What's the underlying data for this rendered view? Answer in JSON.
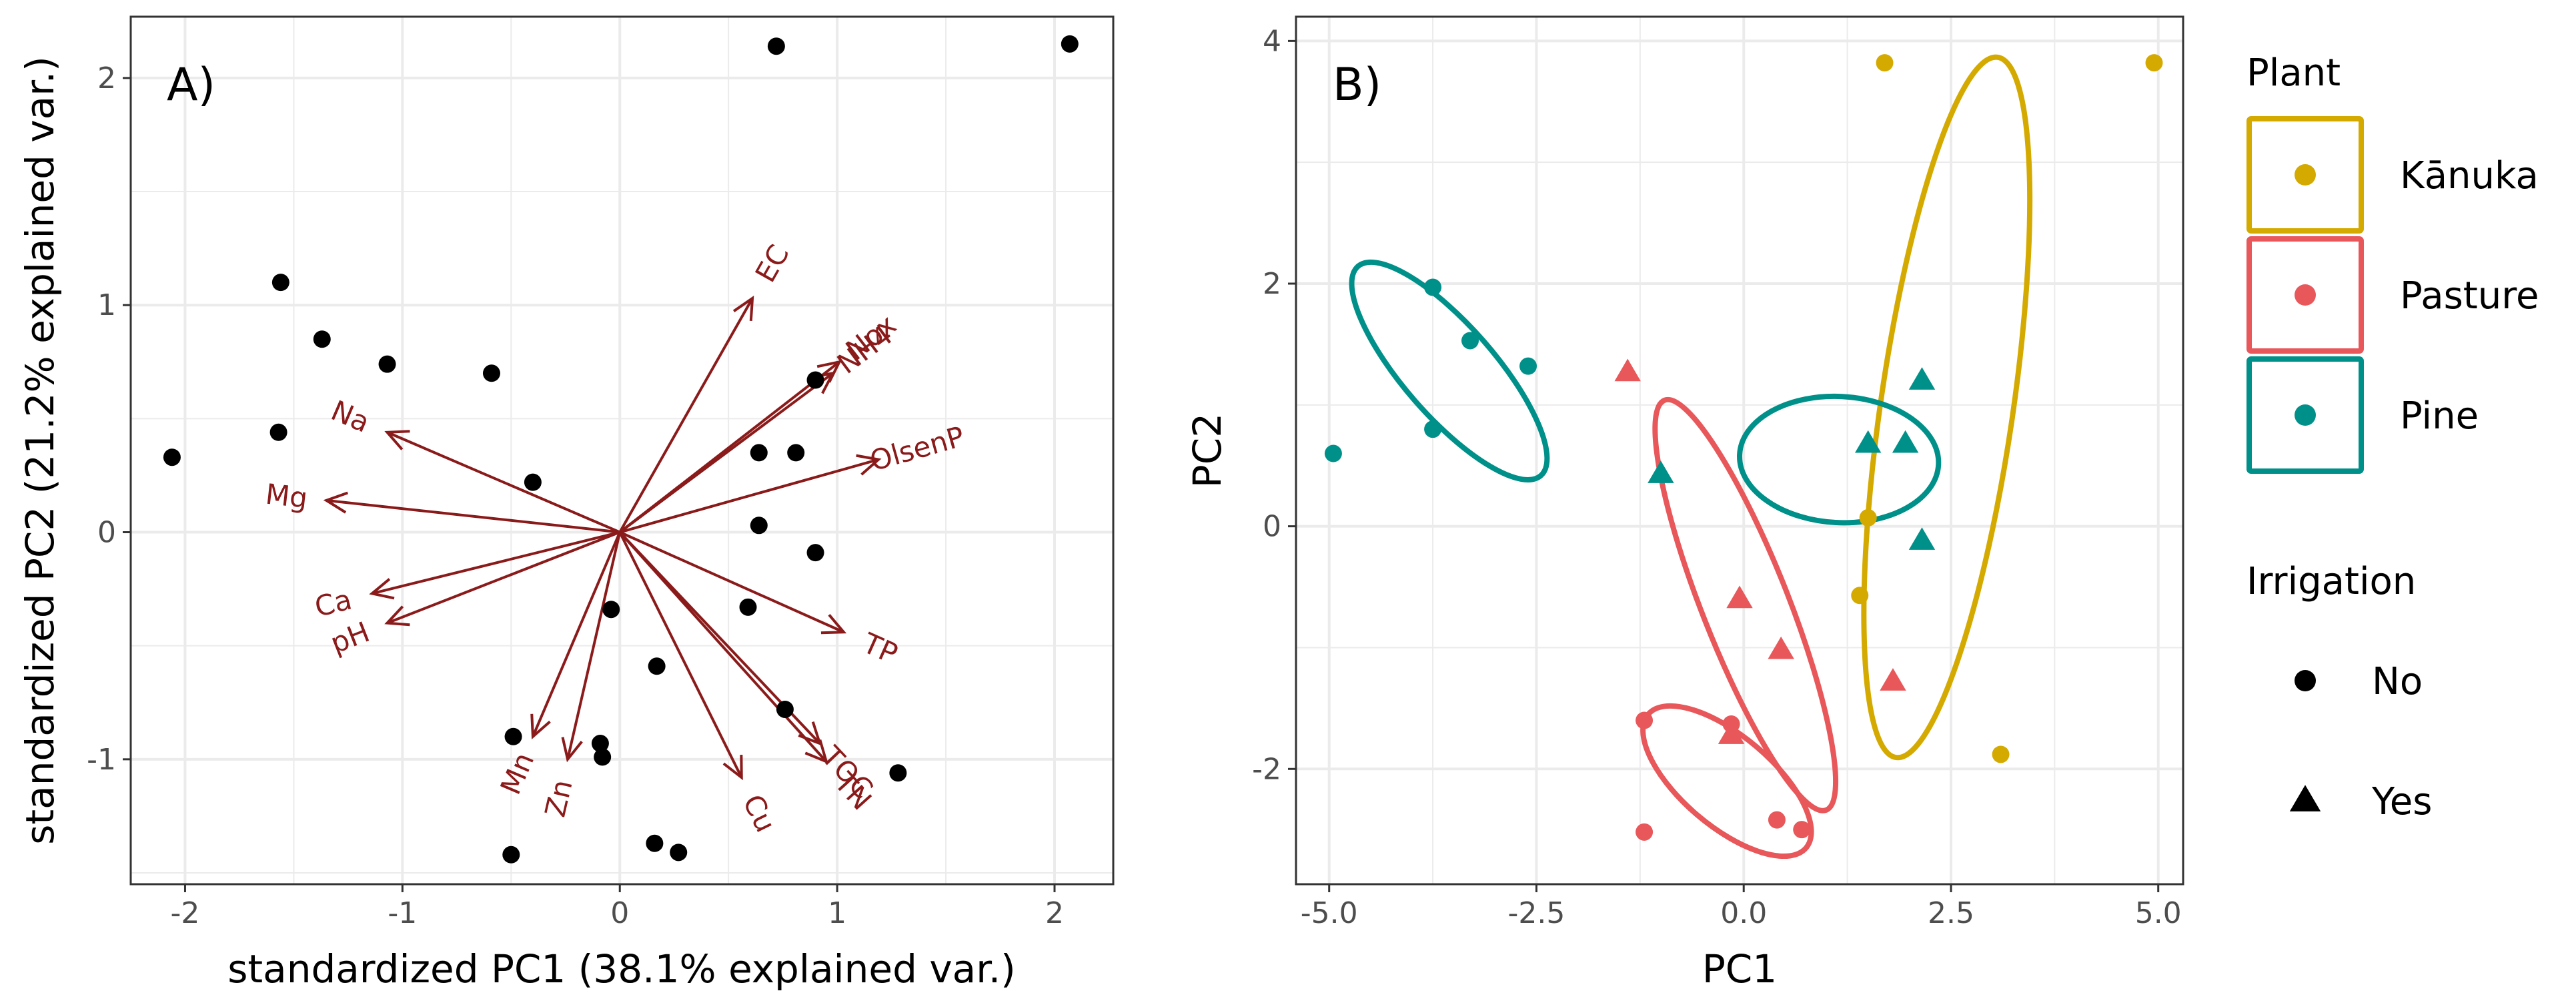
{
  "colors": {
    "arrow": "#8b1a1a",
    "Kānuka": "#d4aa00",
    "Pasture": "#e8575a",
    "Pine": "#00908a",
    "grid": "#ebebeb",
    "frame": "#333333",
    "tick": "#4d4d4d"
  },
  "chart_data": [
    {
      "type": "scatter",
      "panel": "A)",
      "subtype": "pca-biplot",
      "xlabel": "standardized PC1 (38.1% explained var.)",
      "ylabel": "standardized PC2 (21.2% explained var.)",
      "xlim": [
        -2.25,
        2.27
      ],
      "ylim": [
        -1.55,
        2.27
      ],
      "xticks": [
        -2,
        -1,
        0,
        1,
        2
      ],
      "xtick_labels": [
        "-2",
        "-1",
        "0",
        "1",
        "2"
      ],
      "yticks": [
        -1,
        0,
        1,
        2
      ],
      "ytick_labels": [
        "-1",
        "0",
        "1",
        "2"
      ],
      "points": [
        {
          "x": 0.72,
          "y": 2.14
        },
        {
          "x": 2.07,
          "y": 2.15
        },
        {
          "x": -1.56,
          "y": 1.1
        },
        {
          "x": -1.37,
          "y": 0.85
        },
        {
          "x": -1.07,
          "y": 0.74
        },
        {
          "x": -0.59,
          "y": 0.7
        },
        {
          "x": -2.06,
          "y": 0.33
        },
        {
          "x": -1.57,
          "y": 0.44
        },
        {
          "x": -0.4,
          "y": 0.22
        },
        {
          "x": 0.9,
          "y": 0.67
        },
        {
          "x": 0.64,
          "y": 0.35
        },
        {
          "x": 0.81,
          "y": 0.35
        },
        {
          "x": 0.64,
          "y": 0.03
        },
        {
          "x": 0.9,
          "y": -0.09
        },
        {
          "x": -0.04,
          "y": -0.34
        },
        {
          "x": 0.59,
          "y": -0.33
        },
        {
          "x": 0.17,
          "y": -0.59
        },
        {
          "x": 0.76,
          "y": -0.78
        },
        {
          "x": -0.49,
          "y": -0.9
        },
        {
          "x": -0.09,
          "y": -0.93
        },
        {
          "x": -0.08,
          "y": -0.99
        },
        {
          "x": 1.28,
          "y": -1.06
        },
        {
          "x": -0.5,
          "y": -1.42
        },
        {
          "x": 0.16,
          "y": -1.37
        },
        {
          "x": 0.27,
          "y": -1.41
        }
      ],
      "vectors": [
        {
          "name": "EC",
          "x": 0.61,
          "y": 1.03
        },
        {
          "name": "Nox",
          "x": 1.01,
          "y": 0.75
        },
        {
          "name": "NH4",
          "x": 0.98,
          "y": 0.7
        },
        {
          "name": "OlsenP",
          "x": 1.19,
          "y": 0.32
        },
        {
          "name": "TP",
          "x": 1.03,
          "y": -0.44
        },
        {
          "name": "TOC",
          "x": 0.92,
          "y": -0.93
        },
        {
          "name": "TN",
          "x": 0.95,
          "y": -1.01
        },
        {
          "name": "Cu",
          "x": 0.56,
          "y": -1.08
        },
        {
          "name": "Zn",
          "x": -0.24,
          "y": -1.0
        },
        {
          "name": "Mn",
          "x": -0.4,
          "y": -0.9
        },
        {
          "name": "pH",
          "x": -1.07,
          "y": -0.4
        },
        {
          "name": "Ca",
          "x": -1.14,
          "y": -0.27
        },
        {
          "name": "Mg",
          "x": -1.35,
          "y": 0.14
        },
        {
          "name": "Na",
          "x": -1.07,
          "y": 0.44
        }
      ]
    },
    {
      "type": "scatter",
      "panel": "B)",
      "xlabel": "PC1",
      "ylabel": "PC2",
      "xlim": [
        -5.4,
        5.3
      ],
      "ylim": [
        -2.95,
        4.2
      ],
      "xticks": [
        -5,
        -2.5,
        0,
        2.5,
        5
      ],
      "xtick_labels": [
        "-5.0",
        "-2.5",
        "0.0",
        "2.5",
        "5.0"
      ],
      "yticks": [
        -2,
        0,
        2,
        4
      ],
      "ytick_labels": [
        "-2",
        "0",
        "2",
        "4"
      ],
      "series": [
        {
          "plant": "Kānuka",
          "irrigation": "No",
          "points": [
            [
              1.7,
              3.82
            ],
            [
              4.95,
              3.82
            ],
            [
              1.5,
              0.07
            ],
            [
              1.4,
              -0.57
            ],
            [
              3.1,
              -1.88
            ]
          ]
        },
        {
          "plant": "Kānuka",
          "irrigation": "Yes",
          "points": []
        },
        {
          "plant": "Pasture",
          "irrigation": "No",
          "points": [
            [
              -1.2,
              -1.6
            ],
            [
              -0.15,
              -1.63
            ],
            [
              0.4,
              -2.42
            ],
            [
              -1.2,
              -2.52
            ],
            [
              0.7,
              -2.5
            ]
          ]
        },
        {
          "plant": "Pasture",
          "irrigation": "Yes",
          "points": [
            [
              -1.4,
              1.27
            ],
            [
              -0.05,
              -0.6
            ],
            [
              0.45,
              -1.02
            ],
            [
              1.8,
              -1.28
            ],
            [
              -0.15,
              -1.72
            ]
          ]
        },
        {
          "plant": "Pine",
          "irrigation": "No",
          "points": [
            [
              -3.75,
              1.97
            ],
            [
              -3.3,
              1.53
            ],
            [
              -2.6,
              1.32
            ],
            [
              -3.75,
              0.8
            ],
            [
              -4.95,
              0.6
            ]
          ]
        },
        {
          "plant": "Pine",
          "irrigation": "Yes",
          "points": [
            [
              2.15,
              1.2
            ],
            [
              1.5,
              0.68
            ],
            [
              1.95,
              0.68
            ],
            [
              -1.0,
              0.43
            ],
            [
              2.15,
              -0.12
            ]
          ]
        }
      ],
      "ellipses": [
        {
          "plant": "Kānuka",
          "cx": 2.45,
          "cy": 0.98,
          "rx": 2.95,
          "ry": 0.78,
          "angle_deg": 78
        },
        {
          "plant": "Pasture",
          "cx": 0.02,
          "cy": -0.65,
          "rx": 1.95,
          "ry": 0.46,
          "angle_deg": -60
        },
        {
          "plant": "Pasture",
          "cx": -0.2,
          "cy": -2.1,
          "rx": 1.1,
          "ry": 0.4,
          "angle_deg": -30
        },
        {
          "plant": "Pine",
          "cx": 1.15,
          "cy": 0.55,
          "rx": 1.2,
          "ry": 0.52,
          "angle_deg": -2
        },
        {
          "plant": "Pine",
          "cx": -3.55,
          "cy": 1.28,
          "rx": 1.4,
          "ry": 0.42,
          "angle_deg": -38
        }
      ],
      "legend": {
        "plant_title": "Plant",
        "plant_items": [
          "Kānuka",
          "Pasture",
          "Pine"
        ],
        "irrigation_title": "Irrigation",
        "irrigation_items": [
          "No",
          "Yes"
        ],
        "placement": "right"
      }
    }
  ]
}
